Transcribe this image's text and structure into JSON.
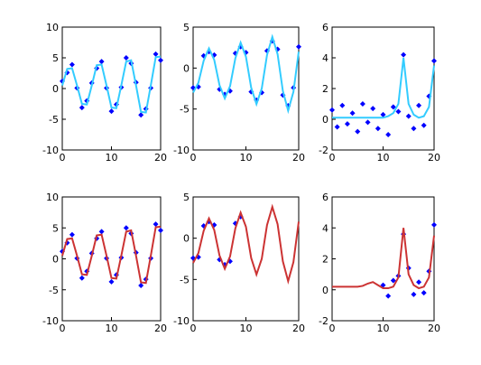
{
  "chart_data": [
    {
      "type": "scatter",
      "xlim": [
        0,
        20
      ],
      "xticks": [
        0,
        10,
        20
      ],
      "ylim": [
        -10,
        10
      ],
      "yticks": [
        -10,
        -5,
        0,
        5,
        10
      ],
      "x": [
        0,
        1,
        2,
        3,
        4,
        5,
        6,
        7,
        8,
        9,
        10,
        11,
        12,
        13,
        14,
        15,
        16,
        17,
        18,
        19,
        20
      ],
      "series": [
        {
          "mode": "markers",
          "color": "#0000ff",
          "values": [
            1.2,
            2.6,
            3.9,
            0.1,
            -3.1,
            -2.0,
            0.9,
            3.3,
            4.4,
            0.1,
            -3.7,
            -2.6,
            0.2,
            5.0,
            4.1,
            1.0,
            -4.3,
            -3.3,
            0.1,
            5.6,
            4.6
          ]
        },
        {
          "mode": "lines",
          "color": "#33ccff",
          "values": [
            0.5,
            3.2,
            3.3,
            0.5,
            -2.5,
            -2.6,
            0.5,
            3.8,
            3.9,
            0.5,
            -3.1,
            -3.2,
            0.5,
            4.4,
            4.6,
            0.5,
            -3.8,
            -3.9,
            0.5,
            5.1,
            5.2
          ]
        }
      ]
    },
    {
      "type": "scatter",
      "xlim": [
        0,
        20
      ],
      "xticks": [
        0,
        10,
        20
      ],
      "ylim": [
        -10,
        5
      ],
      "yticks": [
        -10,
        -5,
        0,
        5
      ],
      "x": [
        0,
        1,
        2,
        3,
        4,
        5,
        6,
        7,
        8,
        9,
        10,
        11,
        12,
        13,
        14,
        15,
        16,
        17,
        18,
        19,
        20
      ],
      "series": [
        {
          "mode": "markers",
          "color": "#0000ff",
          "values": [
            -2.4,
            -2.3,
            1.5,
            2.0,
            1.6,
            -2.6,
            -3.2,
            -2.8,
            1.8,
            2.6,
            1.9,
            -2.9,
            -3.9,
            -3.0,
            2.1,
            3.3,
            2.3,
            -3.3,
            -4.6,
            -2.4,
            2.6
          ]
        },
        {
          "mode": "lines",
          "color": "#33ccff",
          "values": [
            -3.0,
            -1.8,
            0.9,
            2.4,
            1.0,
            -2.1,
            -3.7,
            -2.2,
            1.2,
            3.1,
            1.4,
            -2.4,
            -4.4,
            -2.5,
            1.6,
            3.8,
            1.7,
            -2.8,
            -5.2,
            -2.9,
            2.0
          ]
        }
      ]
    },
    {
      "type": "scatter",
      "xlim": [
        0,
        20
      ],
      "xticks": [
        0,
        10,
        20
      ],
      "ylim": [
        -2,
        6
      ],
      "yticks": [
        -2,
        0,
        2,
        4,
        6
      ],
      "x": [
        0,
        1,
        2,
        3,
        4,
        5,
        6,
        7,
        8,
        9,
        10,
        11,
        12,
        13,
        14,
        15,
        16,
        17,
        18,
        19,
        20
      ],
      "series": [
        {
          "mode": "markers",
          "color": "#0000ff",
          "values": [
            0.6,
            -0.5,
            0.9,
            -0.3,
            0.4,
            -0.8,
            1.0,
            -0.2,
            0.7,
            -0.6,
            0.3,
            -1.0,
            0.8,
            0.5,
            4.2,
            0.2,
            -0.6,
            0.9,
            -0.4,
            1.5,
            3.8
          ]
        },
        {
          "mode": "lines",
          "color": "#33ccff",
          "values": [
            0.1,
            0.1,
            0.1,
            0.1,
            0.1,
            0.1,
            0.1,
            0.1,
            0.1,
            0.1,
            0.1,
            0.2,
            0.4,
            1.0,
            4.0,
            1.0,
            0.3,
            0.1,
            0.2,
            0.8,
            3.5
          ]
        }
      ]
    },
    {
      "type": "scatter",
      "xlim": [
        0,
        20
      ],
      "xticks": [
        0,
        10,
        20
      ],
      "ylim": [
        -10,
        10
      ],
      "yticks": [
        -10,
        -5,
        0,
        5,
        10
      ],
      "x": [
        0,
        1,
        2,
        3,
        4,
        5,
        6,
        7,
        8,
        9,
        10,
        11,
        12,
        13,
        14,
        15,
        16,
        17,
        18,
        19,
        20
      ],
      "series": [
        {
          "mode": "markers",
          "color": "#0000ff",
          "values": [
            1.2,
            2.6,
            3.9,
            0.1,
            -3.1,
            -2.0,
            0.9,
            3.3,
            4.4,
            0.1,
            -3.7,
            -2.6,
            0.2,
            5.0,
            4.1,
            1.0,
            -4.3,
            -3.3,
            0.1,
            5.6,
            4.6
          ]
        },
        {
          "mode": "lines",
          "color": "#cc3333",
          "values": [
            0.5,
            3.2,
            3.3,
            0.5,
            -2.5,
            -2.6,
            0.5,
            3.8,
            3.9,
            0.5,
            -3.1,
            -3.2,
            0.5,
            4.4,
            4.6,
            0.5,
            -3.8,
            -3.9,
            0.5,
            5.1,
            5.2
          ]
        }
      ]
    },
    {
      "type": "scatter",
      "xlim": [
        0,
        20
      ],
      "xticks": [
        0,
        10,
        20
      ],
      "ylim": [
        -10,
        5
      ],
      "yticks": [
        -10,
        -5,
        0,
        5
      ],
      "x": [
        0,
        1,
        2,
        3,
        4,
        5,
        6,
        7,
        8,
        9,
        10,
        11,
        12,
        13,
        14,
        15,
        16,
        17,
        18,
        19,
        20
      ],
      "series": [
        {
          "mode": "markers",
          "color": "#0000ff",
          "values": [
            -2.4,
            -2.3,
            1.5,
            2.0,
            1.6,
            -2.6,
            -3.2,
            -2.8,
            1.8,
            2.6,
            null,
            null,
            null,
            null,
            null,
            null,
            null,
            null,
            null,
            null,
            null
          ]
        },
        {
          "mode": "lines",
          "color": "#cc3333",
          "values": [
            -3.0,
            -1.8,
            0.9,
            2.4,
            1.0,
            -2.1,
            -3.7,
            -2.2,
            1.2,
            3.1,
            1.4,
            -2.4,
            -4.4,
            -2.5,
            1.6,
            3.8,
            1.7,
            -2.8,
            -5.2,
            -2.9,
            2.0
          ]
        }
      ]
    },
    {
      "type": "scatter",
      "xlim": [
        0,
        20
      ],
      "xticks": [
        0,
        10,
        20
      ],
      "ylim": [
        -2,
        6
      ],
      "yticks": [
        -2,
        0,
        2,
        4,
        6
      ],
      "x": [
        0,
        1,
        2,
        3,
        4,
        5,
        6,
        7,
        8,
        9,
        10,
        11,
        12,
        13,
        14,
        15,
        16,
        17,
        18,
        19,
        20
      ],
      "series": [
        {
          "mode": "markers",
          "color": "#0000ff",
          "values": [
            null,
            null,
            null,
            null,
            null,
            null,
            null,
            null,
            null,
            null,
            0.3,
            -0.4,
            0.6,
            0.9,
            3.6,
            1.4,
            -0.3,
            0.5,
            -0.2,
            1.2,
            4.2
          ]
        },
        {
          "mode": "lines",
          "color": "#cc3333",
          "values": [
            0.2,
            0.2,
            0.2,
            0.2,
            0.2,
            0.2,
            0.25,
            0.4,
            0.5,
            0.3,
            0.1,
            0.1,
            0.2,
            0.8,
            4.0,
            1.0,
            0.3,
            0.1,
            0.2,
            0.8,
            3.5
          ]
        }
      ]
    }
  ]
}
